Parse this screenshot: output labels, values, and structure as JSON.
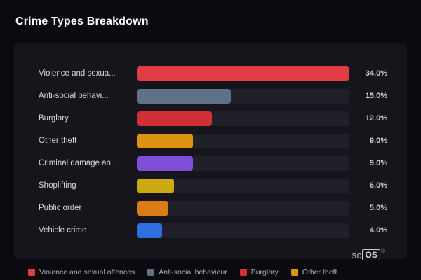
{
  "title": "Crime Types Breakdown",
  "chart_data": {
    "type": "bar",
    "orientation": "horizontal",
    "title": "Crime Types Breakdown",
    "xlabel": "",
    "ylabel": "",
    "xlim": [
      0,
      34
    ],
    "grid": false,
    "legend_position": "bottom",
    "categories": [
      "Violence and sexual offences",
      "Anti-social behaviour",
      "Burglary",
      "Other theft",
      "Criminal damage and arson",
      "Shoplifting",
      "Public order",
      "Vehicle crime"
    ],
    "values": [
      34.0,
      15.0,
      12.0,
      9.0,
      9.0,
      6.0,
      5.0,
      4.0
    ],
    "bars": [
      {
        "display_label": "Violence and sexua...",
        "value": 34.0,
        "value_label": "34.0%",
        "color": "#e23d45"
      },
      {
        "display_label": "Anti-social behavi...",
        "value": 15.0,
        "value_label": "15.0%",
        "color": "#5d7188"
      },
      {
        "display_label": "Burglary",
        "value": 12.0,
        "value_label": "12.0%",
        "color": "#d32f38"
      },
      {
        "display_label": "Other theft",
        "value": 9.0,
        "value_label": "9.0%",
        "color": "#dc930f"
      },
      {
        "display_label": "Criminal damage an...",
        "value": 9.0,
        "value_label": "9.0%",
        "color": "#7e4fd8"
      },
      {
        "display_label": "Shoplifting",
        "value": 6.0,
        "value_label": "6.0%",
        "color": "#ccaa12"
      },
      {
        "display_label": "Public order",
        "value": 5.0,
        "value_label": "5.0%",
        "color": "#d97b16"
      },
      {
        "display_label": "Vehicle crime",
        "value": 4.0,
        "value_label": "4.0%",
        "color": "#2f6fe0"
      }
    ]
  },
  "legend": [
    {
      "label": "Violence and sexual offences",
      "color": "#e23d45"
    },
    {
      "label": "Anti-social behaviour",
      "color": "#5d7188"
    },
    {
      "label": "Burglary",
      "color": "#d32f38"
    },
    {
      "label": "Other theft",
      "color": "#dc930f"
    }
  ],
  "colors": {
    "background": "#0b0b0f",
    "panel": "#15151b",
    "track": "#202028",
    "title_text": "#ffffff",
    "label_text": "#d6d6dc",
    "value_text": "#cdcdd4",
    "legend_text": "#aaaab2"
  },
  "branding": {
    "sc": "sc",
    "os": "OS",
    "reg": "®"
  }
}
